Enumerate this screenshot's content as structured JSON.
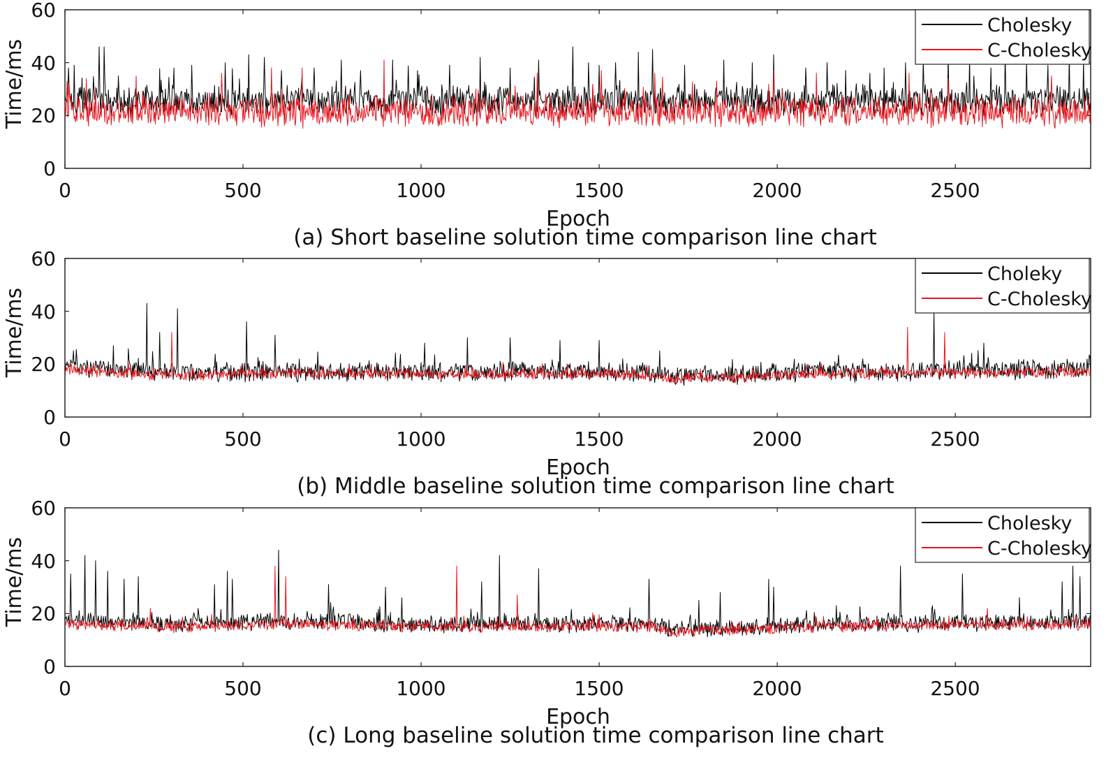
{
  "chart_data": [
    {
      "type": "line",
      "caption": "(a) Short baseline solution time comparison line chart",
      "xlabel": "Epoch",
      "ylabel": "Time/ms",
      "xlim": [
        0,
        2880
      ],
      "ylim": [
        0,
        60
      ],
      "xticks": [
        "0",
        "500",
        "1000",
        "1500",
        "2000",
        "2500"
      ],
      "yticks": [
        "0",
        "20",
        "40",
        "60"
      ],
      "legend_position": "top-right",
      "series": [
        {
          "name": "Cholesky",
          "color": "#000000",
          "typical_range": [
            20,
            31
          ],
          "base": 25,
          "spikes": [
            [
              10,
              38
            ],
            [
              25,
              39
            ],
            [
              95,
              46
            ],
            [
              110,
              46
            ],
            [
              150,
              35
            ],
            [
              305,
              38
            ],
            [
              355,
              39
            ],
            [
              450,
              40
            ],
            [
              515,
              43
            ],
            [
              560,
              42
            ],
            [
              700,
              38
            ],
            [
              775,
              41
            ],
            [
              830,
              37
            ],
            [
              920,
              41
            ],
            [
              990,
              37
            ],
            [
              1080,
              39
            ],
            [
              1165,
              42
            ],
            [
              1250,
              38
            ],
            [
              1330,
              41
            ],
            [
              1425,
              46
            ],
            [
              1470,
              40
            ],
            [
              1500,
              39
            ],
            [
              1545,
              40
            ],
            [
              1610,
              44
            ],
            [
              1650,
              45
            ],
            [
              1740,
              39
            ],
            [
              1850,
              41
            ],
            [
              1930,
              40
            ],
            [
              1990,
              43
            ],
            [
              2080,
              38
            ],
            [
              2140,
              40
            ],
            [
              2260,
              36
            ],
            [
              2300,
              38
            ],
            [
              2360,
              40
            ],
            [
              2410,
              41
            ],
            [
              2480,
              43
            ],
            [
              2540,
              42
            ],
            [
              2600,
              38
            ],
            [
              2640,
              43
            ],
            [
              2700,
              40
            ],
            [
              2760,
              39
            ],
            [
              2820,
              43
            ],
            [
              2860,
              41
            ]
          ]
        },
        {
          "name": "C-Cholesky",
          "color": "#e8121b",
          "typical_range": [
            16,
            27
          ],
          "base": 21,
          "spikes": [
            [
              60,
              34
            ],
            [
              200,
              35
            ],
            [
              440,
              36
            ],
            [
              580,
              38
            ],
            [
              665,
              38
            ],
            [
              895,
              41
            ],
            [
              1325,
              36
            ],
            [
              1505,
              37
            ],
            [
              1655,
              36
            ],
            [
              1830,
              33
            ],
            [
              1990,
              37
            ],
            [
              2110,
              36
            ],
            [
              2370,
              36
            ],
            [
              2480,
              34
            ],
            [
              2770,
              35
            ]
          ]
        }
      ]
    },
    {
      "type": "line",
      "caption": "(b) Middle baseline solution time comparison line chart",
      "xlabel": "Epoch",
      "ylabel": "Time/ms",
      "xlim": [
        0,
        2880
      ],
      "ylim": [
        0,
        60
      ],
      "xticks": [
        "0",
        "500",
        "1000",
        "1500",
        "2000",
        "2500"
      ],
      "yticks": [
        "0",
        "20",
        "40",
        "60"
      ],
      "legend_position": "top-right",
      "series": [
        {
          "name": "Choleky",
          "color": "#000000",
          "typical_range": [
            16,
            23
          ],
          "segments": [
            [
              0,
              19
            ],
            [
              300,
              17
            ],
            [
              1600,
              17
            ],
            [
              1700,
              15.5
            ],
            [
              1900,
              16
            ],
            [
              2100,
              17.5
            ],
            [
              2300,
              17
            ],
            [
              2880,
              18.5
            ]
          ],
          "spikes": [
            [
              135,
              27
            ],
            [
              230,
              43
            ],
            [
              265,
              32
            ],
            [
              315,
              41
            ],
            [
              510,
              36
            ],
            [
              590,
              31
            ],
            [
              1010,
              28
            ],
            [
              1130,
              30
            ],
            [
              1250,
              30
            ],
            [
              1390,
              29
            ],
            [
              1500,
              29
            ],
            [
              1670,
              25
            ],
            [
              2440,
              40
            ],
            [
              2580,
              28
            ]
          ]
        },
        {
          "name": "C-Cholesky",
          "color": "#e8121b",
          "typical_range": [
            15,
            19
          ],
          "segments": [
            [
              0,
              18
            ],
            [
              300,
              15.5
            ],
            [
              500,
              16.5
            ],
            [
              1600,
              16
            ],
            [
              1700,
              14.5
            ],
            [
              1900,
              15
            ],
            [
              2100,
              16.5
            ],
            [
              2880,
              17
            ]
          ],
          "spikes": [
            [
              300,
              32
            ],
            [
              2365,
              34
            ],
            [
              2470,
              32
            ]
          ]
        }
      ]
    },
    {
      "type": "line",
      "caption": "(c) Long baseline solution time comparison line chart",
      "xlabel": "Epoch",
      "ylabel": "Time/ms",
      "xlim": [
        0,
        2880
      ],
      "ylim": [
        0,
        60
      ],
      "xticks": [
        "0",
        "500",
        "1000",
        "1500",
        "2000",
        "2500"
      ],
      "yticks": [
        "0",
        "20",
        "40",
        "60"
      ],
      "legend_position": "top-right",
      "series": [
        {
          "name": "Cholesky",
          "color": "#000000",
          "typical_range": [
            15,
            21
          ],
          "segments": [
            [
              0,
              18
            ],
            [
              300,
              16
            ],
            [
              700,
              17.5
            ],
            [
              900,
              16
            ],
            [
              1650,
              16
            ],
            [
              1700,
              14
            ],
            [
              1950,
              15
            ],
            [
              2100,
              16
            ],
            [
              2880,
              17
            ]
          ],
          "spikes": [
            [
              15,
              35
            ],
            [
              55,
              42
            ],
            [
              85,
              40
            ],
            [
              120,
              36
            ],
            [
              165,
              33
            ],
            [
              205,
              34
            ],
            [
              420,
              31
            ],
            [
              455,
              36
            ],
            [
              470,
              33
            ],
            [
              600,
              44
            ],
            [
              740,
              31
            ],
            [
              900,
              30
            ],
            [
              945,
              26
            ],
            [
              1170,
              32
            ],
            [
              1220,
              42
            ],
            [
              1330,
              37
            ],
            [
              1640,
              33
            ],
            [
              1780,
              25
            ],
            [
              1840,
              28
            ],
            [
              1975,
              33
            ],
            [
              1990,
              30
            ],
            [
              2345,
              38
            ],
            [
              2435,
              23
            ],
            [
              2520,
              35
            ],
            [
              2680,
              26
            ],
            [
              2800,
              32
            ],
            [
              2830,
              38
            ],
            [
              2850,
              34
            ]
          ]
        },
        {
          "name": "C-Cholesky",
          "color": "#e8121b",
          "typical_range": [
            14,
            18
          ],
          "segments": [
            [
              0,
              16
            ],
            [
              300,
              15
            ],
            [
              700,
              16
            ],
            [
              900,
              15
            ],
            [
              1650,
              15
            ],
            [
              1700,
              13
            ],
            [
              1950,
              14
            ],
            [
              2100,
              15
            ],
            [
              2880,
              16
            ]
          ],
          "spikes": [
            [
              240,
              22
            ],
            [
              590,
              38
            ],
            [
              620,
              34
            ],
            [
              1100,
              38
            ],
            [
              1270,
              27
            ],
            [
              2590,
              22
            ]
          ]
        }
      ]
    }
  ]
}
